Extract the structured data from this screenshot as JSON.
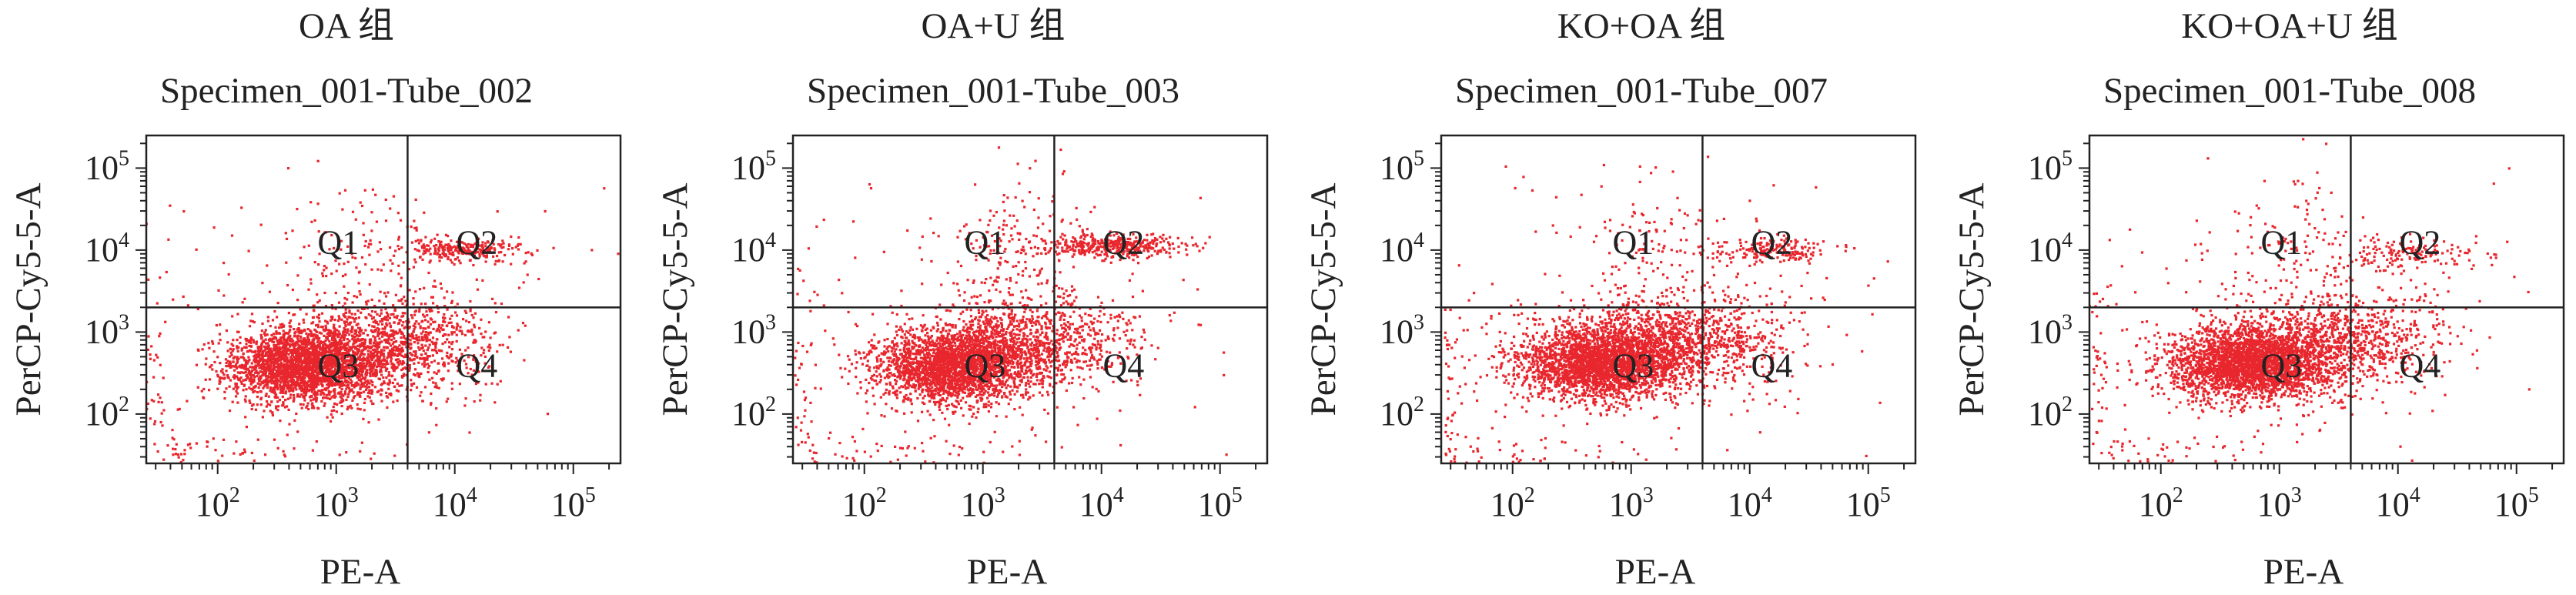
{
  "panels": [
    {
      "group": "OA 组",
      "specimen": "Specimen_001-Tube_002",
      "seed": 11
    },
    {
      "group": "OA+U 组",
      "specimen": "Specimen_001-Tube_003",
      "seed": 23
    },
    {
      "group": "KO+OA 组",
      "specimen": "Specimen_001-Tube_007",
      "seed": 37
    },
    {
      "group": "KO+OA+U 组",
      "specimen": "Specimen_001-Tube_008",
      "seed": 51
    }
  ],
  "colors": {
    "dots": "#e8262d",
    "axis": "#222222",
    "text": "#222222"
  },
  "chart_data": [
    {
      "type": "scatter",
      "title": "Specimen_001-Tube_002",
      "xlabel": "PE-A",
      "ylabel": "PerCP-Cy5-5-A",
      "xscale": "log",
      "yscale": "log",
      "xlim": [
        25,
        250000
      ],
      "ylim": [
        25,
        250000
      ],
      "xticks": [
        100,
        1000,
        10000,
        100000
      ],
      "yticks": [
        100,
        1000,
        10000,
        100000
      ],
      "gates": {
        "x": 4000,
        "y": 2000
      },
      "quadrants": [
        "Q1",
        "Q2",
        "Q3",
        "Q4"
      ],
      "populations": [
        {
          "cx": 550,
          "cy": 380,
          "sx": 0.32,
          "sy": 0.22,
          "n": 2600
        },
        {
          "cx": 1800,
          "cy": 650,
          "sx": 0.38,
          "sy": 0.28,
          "n": 900
        },
        {
          "cx": 7000,
          "cy": 900,
          "sx": 0.3,
          "sy": 0.3,
          "n": 260
        },
        {
          "cx": 12000,
          "cy": 10000,
          "sx": 0.28,
          "sy": 0.07,
          "n": 260
        },
        {
          "cx": 1500,
          "cy": 10000,
          "sx": 0.3,
          "sy": 0.4,
          "n": 110
        },
        {
          "cx": 100,
          "cy": 35,
          "sx": 0.6,
          "sy": 0.12,
          "n": 60
        },
        {
          "cx": 30,
          "cy": 300,
          "sx": 0.06,
          "sy": 0.6,
          "n": 40
        },
        {
          "cx": 1000,
          "cy": 1000,
          "sx": 1.0,
          "sy": 1.0,
          "n": 180
        }
      ]
    },
    {
      "type": "scatter",
      "title": "Specimen_001-Tube_003",
      "xlabel": "PE-A",
      "ylabel": "PerCP-Cy5-5-A",
      "xscale": "log",
      "yscale": "log",
      "xlim": [
        25,
        250000
      ],
      "ylim": [
        25,
        250000
      ],
      "xticks": [
        100,
        1000,
        10000,
        100000
      ],
      "yticks": [
        100,
        1000,
        10000,
        100000
      ],
      "gates": {
        "x": 4000,
        "y": 2000
      },
      "quadrants": [
        "Q1",
        "Q2",
        "Q3",
        "Q4"
      ],
      "populations": [
        {
          "cx": 550,
          "cy": 380,
          "sx": 0.32,
          "sy": 0.22,
          "n": 2300
        },
        {
          "cx": 1800,
          "cy": 700,
          "sx": 0.38,
          "sy": 0.28,
          "n": 850
        },
        {
          "cx": 7000,
          "cy": 900,
          "sx": 0.3,
          "sy": 0.3,
          "n": 230
        },
        {
          "cx": 12000,
          "cy": 11000,
          "sx": 0.3,
          "sy": 0.07,
          "n": 380
        },
        {
          "cx": 2000,
          "cy": 12000,
          "sx": 0.3,
          "sy": 0.4,
          "n": 160
        },
        {
          "cx": 100,
          "cy": 35,
          "sx": 0.6,
          "sy": 0.12,
          "n": 60
        },
        {
          "cx": 30,
          "cy": 300,
          "sx": 0.06,
          "sy": 0.6,
          "n": 35
        },
        {
          "cx": 1000,
          "cy": 1000,
          "sx": 1.0,
          "sy": 1.0,
          "n": 180
        }
      ]
    },
    {
      "type": "scatter",
      "title": "Specimen_001-Tube_007",
      "xlabel": "PE-A",
      "ylabel": "PerCP-Cy5-5-A",
      "xscale": "log",
      "yscale": "log",
      "xlim": [
        25,
        250000
      ],
      "ylim": [
        25,
        250000
      ],
      "xticks": [
        100,
        1000,
        10000,
        100000
      ],
      "yticks": [
        100,
        1000,
        10000,
        100000
      ],
      "gates": {
        "x": 4000,
        "y": 2000
      },
      "quadrants": [
        "Q1",
        "Q2",
        "Q3",
        "Q4"
      ],
      "populations": [
        {
          "cx": 550,
          "cy": 420,
          "sx": 0.34,
          "sy": 0.22,
          "n": 2700
        },
        {
          "cx": 1800,
          "cy": 750,
          "sx": 0.38,
          "sy": 0.28,
          "n": 800
        },
        {
          "cx": 7000,
          "cy": 900,
          "sx": 0.32,
          "sy": 0.3,
          "n": 260
        },
        {
          "cx": 15000,
          "cy": 10000,
          "sx": 0.25,
          "sy": 0.07,
          "n": 180
        },
        {
          "cx": 1500,
          "cy": 10000,
          "sx": 0.3,
          "sy": 0.4,
          "n": 110
        },
        {
          "cx": 100,
          "cy": 35,
          "sx": 0.6,
          "sy": 0.12,
          "n": 60
        },
        {
          "cx": 30,
          "cy": 300,
          "sx": 0.06,
          "sy": 0.6,
          "n": 45
        },
        {
          "cx": 1000,
          "cy": 1000,
          "sx": 1.0,
          "sy": 1.0,
          "n": 200
        }
      ]
    },
    {
      "type": "scatter",
      "title": "Specimen_001-Tube_008",
      "xlabel": "PE-A",
      "ylabel": "PerCP-Cy5-5-A",
      "xscale": "log",
      "yscale": "log",
      "xlim": [
        25,
        250000
      ],
      "ylim": [
        25,
        250000
      ],
      "xticks": [
        100,
        1000,
        10000,
        100000
      ],
      "yticks": [
        100,
        1000,
        10000,
        100000
      ],
      "gates": {
        "x": 4000,
        "y": 2000
      },
      "quadrants": [
        "Q1",
        "Q2",
        "Q3",
        "Q4"
      ],
      "populations": [
        {
          "cx": 550,
          "cy": 400,
          "sx": 0.34,
          "sy": 0.22,
          "n": 2600
        },
        {
          "cx": 1800,
          "cy": 700,
          "sx": 0.38,
          "sy": 0.28,
          "n": 800
        },
        {
          "cx": 7000,
          "cy": 900,
          "sx": 0.32,
          "sy": 0.3,
          "n": 280
        },
        {
          "cx": 12000,
          "cy": 9000,
          "sx": 0.3,
          "sy": 0.1,
          "n": 160
        },
        {
          "cx": 1500,
          "cy": 10000,
          "sx": 0.3,
          "sy": 0.4,
          "n": 100
        },
        {
          "cx": 100,
          "cy": 35,
          "sx": 0.6,
          "sy": 0.12,
          "n": 60
        },
        {
          "cx": 30,
          "cy": 300,
          "sx": 0.06,
          "sy": 0.6,
          "n": 40
        },
        {
          "cx": 1000,
          "cy": 1000,
          "sx": 1.0,
          "sy": 1.0,
          "n": 180
        }
      ]
    }
  ]
}
